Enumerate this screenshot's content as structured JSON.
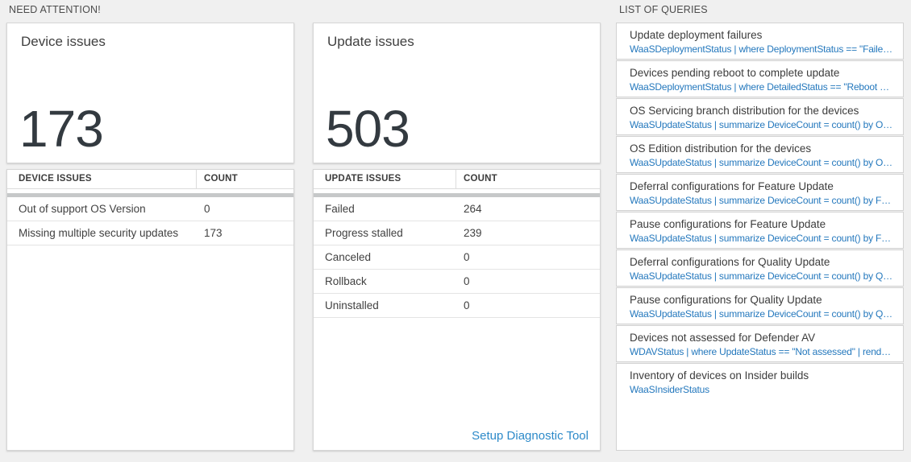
{
  "sections": {
    "need_attention": "NEED ATTENTION!",
    "list_of_queries": "LIST OF QUERIES"
  },
  "device_issues_card": {
    "title": "Device issues",
    "count": "173"
  },
  "device_issues_table": {
    "columns": [
      "DEVICE ISSUES",
      "COUNT"
    ],
    "rows": [
      {
        "label": "Out of support OS Version",
        "count": "0"
      },
      {
        "label": "Missing multiple security updates",
        "count": "173"
      }
    ]
  },
  "update_issues_card": {
    "title": "Update issues",
    "count": "503"
  },
  "update_issues_table": {
    "columns": [
      "UPDATE ISSUES",
      "COUNT"
    ],
    "rows": [
      {
        "label": "Failed",
        "count": "264"
      },
      {
        "label": "Progress stalled",
        "count": "239"
      },
      {
        "label": "Canceled",
        "count": "0"
      },
      {
        "label": "Rollback",
        "count": "0"
      },
      {
        "label": "Uninstalled",
        "count": "0"
      }
    ],
    "footer_link": "Setup Diagnostic Tool"
  },
  "queries": {
    "items": [
      {
        "title": "Update deployment failures",
        "query": "WaaSDeploymentStatus | where DeploymentStatus == \"Failed\" |..."
      },
      {
        "title": "Devices pending reboot to complete update",
        "query": "WaaSDeploymentStatus | where DetailedStatus == \"Reboot pend..."
      },
      {
        "title": "OS Servicing branch distribution for the devices",
        "query": "WaaSUpdateStatus | summarize DeviceCount = count() by OSSer..."
      },
      {
        "title": "OS Edition distribution for the devices",
        "query": "WaaSUpdateStatus | summarize DeviceCount = count() by OSEdit..."
      },
      {
        "title": "Deferral configurations for Feature Update",
        "query": "WaaSUpdateStatus | summarize DeviceCount = count() by Featur..."
      },
      {
        "title": "Pause configurations for Feature Update",
        "query": "WaaSUpdateStatus | summarize DeviceCount = count() by Featur..."
      },
      {
        "title": "Deferral configurations for Quality Update",
        "query": "WaaSUpdateStatus | summarize DeviceCount = count() by Qualit..."
      },
      {
        "title": "Pause configurations for Quality Update",
        "query": "WaaSUpdateStatus | summarize DeviceCount = count() by Qualit..."
      },
      {
        "title": "Devices not assessed for Defender AV",
        "query": "WDAVStatus | where UpdateStatus == \"Not assessed\" | render ta..."
      },
      {
        "title": "Inventory of devices on Insider builds",
        "query": "WaaSInsiderStatus"
      }
    ]
  },
  "colors": {
    "query_link_blue": "#2478bd",
    "diagnostic_link_blue": "#2d8ac9",
    "big_number_color": "#333a40",
    "scroll_shadow_gray": "#c6c8c9",
    "page_background": "#f0f0f0"
  }
}
